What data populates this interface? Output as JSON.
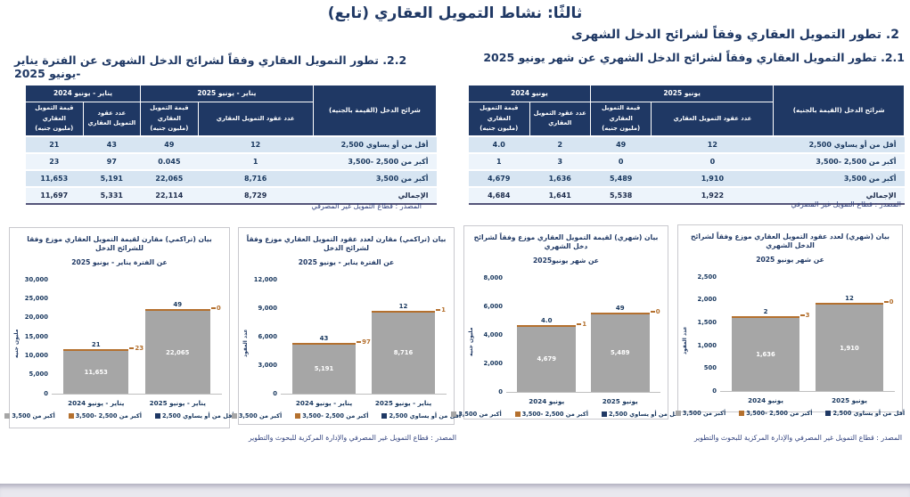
{
  "page": {
    "main_title": "ثالثًا: نشاط التمويل العقاري (تابع)",
    "section2_title": "2. تطور التمويل العقاري وفقاً لشرائح الدخل الشهرى",
    "section21_title": "2.1. تطور التمويل العقاري وفقاً لشرائح  الدخل الشهري عن شهر يونيو 2025",
    "section22_title": "2.2. تطور التمويل العقاري وفقاً لشرائح الدخل الشهرى عن الفترة يناير -يونيو 2025",
    "table_source": "المصدر : قطاع التمويل غير المصرفي",
    "chart_source": "المصدر : قطاع التمويل غير المصرفي والإدارة المركزية للبحوث والتطوير"
  },
  "colors": {
    "navy": "#1f3864",
    "header_bg": "#1f3864",
    "total_row_bg": "#9a6a3f",
    "row_alt_blue": "#d7e5f2",
    "row_alt_light": "#edf4fb",
    "bar_gray": "#a6a6a6",
    "accent_orange": "#b4702e"
  },
  "tables": {
    "headers": {
      "bracket": "شرائح الدخل (القيمة بالجنيه)",
      "count": "عدد عقود التمويل العقاري",
      "value": "قيمة التمويل العقاري\n(مليون جنيه)"
    },
    "monthly": {
      "period_2025": "يونيو 2025",
      "period_2024": "يونيو 2024",
      "rows": [
        {
          "bracket": "أقل من أو يساوي 2,500",
          "count_2025": "12",
          "value_2025": "49",
          "count_2024": "2",
          "value_2024": "4.0"
        },
        {
          "bracket": "أكبر من 2,500 -3,500",
          "count_2025": "0",
          "value_2025": "0",
          "count_2024": "3",
          "value_2024": "1"
        },
        {
          "bracket": "أكبر من 3,500",
          "count_2025": "1,910",
          "value_2025": "5,489",
          "count_2024": "1,636",
          "value_2024": "4,679"
        }
      ],
      "total": {
        "bracket": "الإجمالي",
        "count_2025": "1,922",
        "value_2025": "5,538",
        "count_2024": "1,641",
        "value_2024": "4,684"
      }
    },
    "cumulative": {
      "period_2025": "يناير - يونيو 2025",
      "period_2024": "يناير - يونيو 2024",
      "rows": [
        {
          "bracket": "أقل من أو يساوي 2,500",
          "count_2025": "12",
          "value_2025": "49",
          "count_2024": "43",
          "value_2024": "21"
        },
        {
          "bracket": "أكبر من 2,500 -3,500",
          "count_2025": "1",
          "value_2025": "0.045",
          "count_2024": "97",
          "value_2024": "23"
        },
        {
          "bracket": "أكبر من 3,500",
          "count_2025": "8,716",
          "value_2025": "22,065",
          "count_2024": "5,191",
          "value_2024": "11,653"
        }
      ],
      "total": {
        "bracket": "الإجمالي",
        "count_2025": "8,729",
        "value_2025": "22,114",
        "count_2024": "5,331",
        "value_2024": "11,697"
      }
    }
  },
  "chart_data": [
    {
      "type": "bar",
      "stacked": true,
      "title": "بيان (تراكمي) مقارن لقيمة التمويل العقاري موزع وفقا للشرائح الدخل",
      "subtitle": "عن الفترة يناير - يونيو 2025",
      "ylabel": "مليون جنيه",
      "ymax": 30000,
      "yticks": [
        "30,000",
        "25,000",
        "20,000",
        "15,000",
        "10,000",
        "5,000",
        "0"
      ],
      "categories": [
        "يناير - يونيو 2024",
        "يناير - يونيو 2025"
      ],
      "series": [
        {
          "name": "أقل من أو يساوي 2,500",
          "color": "#1f3864",
          "values": [
            21,
            49
          ]
        },
        {
          "name": "أكبر من 2,500 -3,500",
          "color": "#b4702e",
          "values": [
            23,
            0
          ]
        },
        {
          "name": "أكبر من 3,500",
          "color": "#a6a6a6",
          "values": [
            11653,
            22065
          ]
        }
      ],
      "totals": [
        11697,
        22114
      ],
      "labels": {
        "top": [
          "21",
          "49"
        ],
        "side": [
          "23",
          "0"
        ],
        "inside": [
          "11,653",
          "22,065"
        ]
      }
    },
    {
      "type": "bar",
      "stacked": true,
      "title": "بيان (تراكمي) مقارن لعدد عقود التمويل العقاري موزع وفقاً لشرائح الدخل",
      "subtitle": "عن الفترة يناير - يونيو 2025",
      "ylabel": "عدد العقود",
      "ymax": 12000,
      "yticks": [
        "12,000",
        "9,000",
        "6,000",
        "3,000",
        "0"
      ],
      "categories": [
        "يناير - يونيو 2024",
        "يناير - يونيو 2025"
      ],
      "series": [
        {
          "name": "أقل من أو يساوي 2,500",
          "color": "#1f3864",
          "values": [
            43,
            12
          ]
        },
        {
          "name": "أكبر من 2,500 -3,500",
          "color": "#b4702e",
          "values": [
            97,
            1
          ]
        },
        {
          "name": "أكبر من 3,500",
          "color": "#a6a6a6",
          "values": [
            5191,
            8716
          ]
        }
      ],
      "totals": [
        5331,
        8729
      ],
      "labels": {
        "top": [
          "43",
          "12"
        ],
        "side": [
          "97",
          "1"
        ],
        "inside": [
          "5,191",
          "8,716"
        ]
      }
    },
    {
      "type": "bar",
      "stacked": true,
      "title": "بيان (شهري) لقيمة التمويل العقاري موزع وفقاً لشرائح دخل الشهري",
      "subtitle": "عن شهر يونيو2025",
      "ylabel": "مليون جنيه",
      "ymax": 8000,
      "yticks": [
        "8,000",
        "6,000",
        "4,000",
        "2,000",
        "0"
      ],
      "categories": [
        "يونيو 2024",
        "يونيو 2025"
      ],
      "series": [
        {
          "name": "أقل من أو يساوي 2,500",
          "color": "#1f3864",
          "values": [
            4.0,
            49
          ]
        },
        {
          "name": "أكبر من 2,500 -3,500",
          "color": "#b4702e",
          "values": [
            1,
            0
          ]
        },
        {
          "name": "أكبر من 3,500",
          "color": "#a6a6a6",
          "values": [
            4679,
            5489
          ]
        }
      ],
      "totals": [
        4684,
        5538
      ],
      "labels": {
        "top": [
          "4.0",
          "49"
        ],
        "side": [
          "1",
          "0"
        ],
        "inside": [
          "4,679",
          "5,489"
        ]
      }
    },
    {
      "type": "bar",
      "stacked": true,
      "title": "بيان (شهري) لعدد عقود التمويل العقاري موزع وفقاً لشرائح الدخل الشهري",
      "subtitle": "عن شهر يونيو 2025",
      "ylabel": "عدد العقود",
      "ymax": 2500,
      "yticks": [
        "2,500",
        "2,000",
        "1,500",
        "1,000",
        "500",
        "0"
      ],
      "categories": [
        "يونيو 2024",
        "يونيو 2025"
      ],
      "series": [
        {
          "name": "أقل من أو يساوي 2,500",
          "color": "#1f3864",
          "values": [
            2,
            12
          ]
        },
        {
          "name": "أكبر من 2,500 -3,500",
          "color": "#b4702e",
          "values": [
            3,
            0
          ]
        },
        {
          "name": "أكبر من 3,500",
          "color": "#a6a6a6",
          "values": [
            1636,
            1910
          ]
        }
      ],
      "totals": [
        1641,
        1922
      ],
      "labels": {
        "top": [
          "2",
          "12"
        ],
        "side": [
          "3",
          "0"
        ],
        "inside": [
          "1,636",
          "1,910"
        ]
      }
    }
  ]
}
